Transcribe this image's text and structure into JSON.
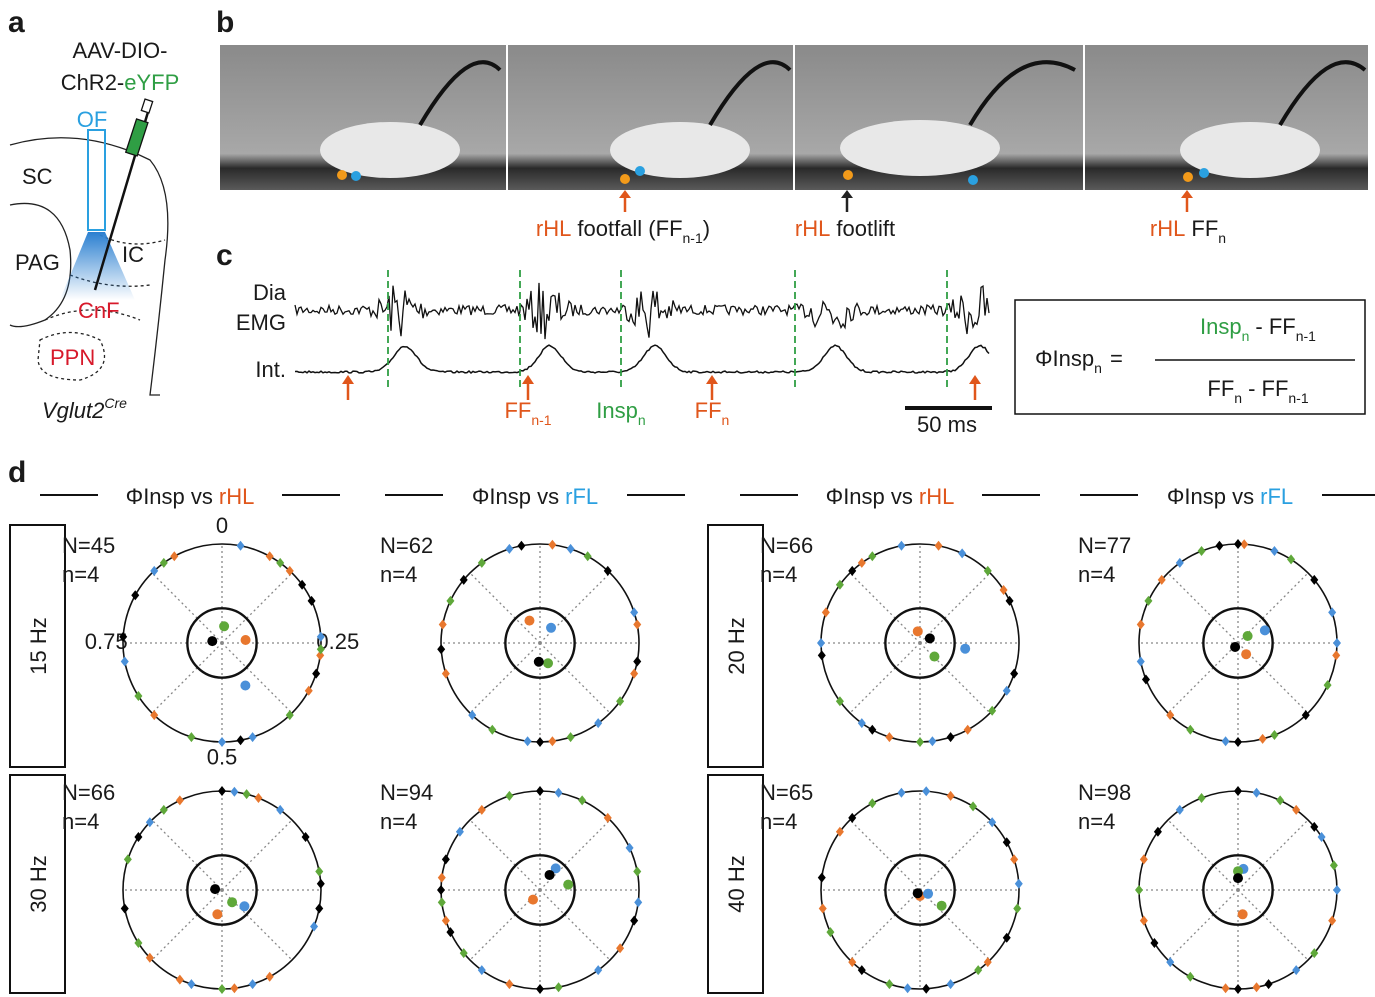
{
  "panel_labels": [
    "a",
    "b",
    "c",
    "d"
  ],
  "panel_a": {
    "virus_line1": "AAV-DIO-",
    "virus_line2": "ChR2-",
    "virus_reporter": "eYFP",
    "fiber": "OF",
    "regions": [
      "SC",
      "PAG",
      "IC",
      "CnF",
      "PPN"
    ],
    "genotype": "Vglut2",
    "genotype_sup": "Cre"
  },
  "panel_b": {
    "captions": [
      {
        "limb": "rHL",
        "event": "footfall (FF",
        "sub": "n-1",
        "close": ")"
      },
      {
        "limb": "rHL",
        "event": "footlift"
      },
      {
        "limb": "rHL",
        "event": "FF",
        "sub": "n"
      }
    ]
  },
  "panel_c": {
    "trace_labels": [
      "Dia",
      "EMG",
      "Int."
    ],
    "markers": [
      {
        "text": "FF",
        "sub": "n-1"
      },
      {
        "text": "Insp",
        "sub": "n"
      },
      {
        "text": "FF",
        "sub": "n"
      }
    ],
    "scale_bar": "50 ms"
  },
  "formula": {
    "lhs": "ΦInsp",
    "lhs_sub": "n",
    "equals": "=",
    "num": [
      "Insp",
      "n",
      "- FF",
      "n-1"
    ],
    "den": [
      "FF",
      "n",
      "- FF",
      "n-1"
    ]
  },
  "panel_d": {
    "headers": [
      {
        "text": "ΦInsp vs",
        "target": "rHL"
      },
      {
        "text": "ΦInsp vs",
        "target": "rFL"
      },
      {
        "text": "ΦInsp vs",
        "target": "rHL"
      },
      {
        "text": "ΦInsp vs",
        "target": "rFL"
      }
    ],
    "frequencies": [
      "15 Hz",
      "30 Hz",
      "20 Hz",
      "40 Hz"
    ],
    "polar_ticks": [
      0,
      0.25,
      0.5,
      0.75
    ],
    "rlim": [
      0,
      1
    ],
    "colors": [
      "#e8772e",
      "#4a90d9",
      "#5fa83a",
      "#000000"
    ],
    "plots": [
      {
        "n_label": "N=45",
        "animals_label": "n=4",
        "series": [
          {
            "phases": [
              0.08,
              0.12,
              0.27,
              0.33,
              0.62,
              0.92
            ],
            "mean": [
              0.23,
              0.24
            ]
          },
          {
            "phases": [
              0.03,
              0.24,
              0.45,
              0.5,
              0.72,
              0.88
            ],
            "mean": [
              0.42,
              0.49
            ]
          },
          {
            "phases": [
              0.1,
              0.26,
              0.38,
              0.55,
              0.66,
              0.9
            ],
            "mean": [
              0.02,
              0.17
            ]
          },
          {
            "phases": [
              0.15,
              0.18,
              0.3,
              0.47,
              0.76,
              0.83
            ],
            "mean": [
              0.78,
              0.1
            ]
          }
        ]
      },
      {
        "n_label": "N=62",
        "animals_label": "n=4",
        "series": [
          {
            "phases": [
              0.02,
              0.22,
              0.3,
              0.48,
              0.7,
              0.78
            ],
            "mean": [
              0.93,
              0.25
            ]
          },
          {
            "phases": [
              0.05,
              0.2,
              0.4,
              0.52,
              0.62,
              0.95
            ],
            "mean": [
              0.1,
              0.19
            ]
          },
          {
            "phases": [
              0.08,
              0.35,
              0.45,
              0.58,
              0.82,
              0.9
            ],
            "mean": [
              0.44,
              0.22
            ]
          },
          {
            "phases": [
              0.12,
              0.28,
              0.5,
              0.74,
              0.86,
              0.97
            ],
            "mean": [
              0.51,
              0.19
            ]
          }
        ]
      },
      {
        "n_label": "N=66",
        "animals_label": "n=4",
        "series": [
          {
            "phases": [
              0.03,
              0.16,
              0.42,
              0.55,
              0.8,
              0.9
            ],
            "mean": [
              0.97,
              0.12
            ]
          },
          {
            "phases": [
              0.07,
              0.33,
              0.48,
              0.6,
              0.75,
              0.97
            ],
            "mean": [
              0.27,
              0.46
            ]
          },
          {
            "phases": [
              0.12,
              0.37,
              0.5,
              0.65,
              0.85,
              0.92
            ],
            "mean": [
              0.37,
              0.2
            ]
          },
          {
            "phases": [
              0.18,
              0.3,
              0.45,
              0.58,
              0.73,
              0.88
            ],
            "mean": [
              0.18,
              0.11
            ]
          }
        ]
      },
      {
        "n_label": "N=77",
        "animals_label": "n=4",
        "series": [
          {
            "phases": [
              0.01,
              0.27,
              0.46,
              0.62,
              0.78,
              0.86
            ],
            "mean": [
              0.4,
              0.14
            ]
          },
          {
            "phases": [
              0.06,
              0.2,
              0.25,
              0.52,
              0.72,
              0.9
            ],
            "mean": [
              0.18,
              0.3
            ]
          },
          {
            "phases": [
              0.09,
              0.32,
              0.44,
              0.58,
              0.82,
              0.94
            ],
            "mean": [
              0.15,
              0.12
            ]
          },
          {
            "phases": [
              0.0,
              0.14,
              0.38,
              0.5,
              0.69,
              0.97
            ],
            "mean": [
              0.6,
              0.05
            ]
          }
        ]
      },
      {
        "n_label": "N=66",
        "animals_label": "n=4",
        "series": [
          {
            "phases": [
              0.06,
              0.42,
              0.48,
              0.57,
              0.63,
              0.93
            ],
            "mean": [
              0.53,
              0.25
            ]
          },
          {
            "phases": [
              0.02,
              0.1,
              0.31,
              0.45,
              0.55,
              0.87
            ],
            "mean": [
              0.35,
              0.28
            ]
          },
          {
            "phases": [
              0.04,
              0.22,
              0.5,
              0.66,
              0.8,
              0.9
            ],
            "mean": [
              0.39,
              0.16
            ]
          },
          {
            "phases": [
              0.0,
              0.16,
              0.24,
              0.28,
              0.72,
              0.84
            ],
            "mean": [
              0.77,
              0.07
            ]
          }
        ]
      },
      {
        "n_label": "N=94",
        "animals_label": "n=4",
        "series": [
          {
            "phases": [
              0.12,
              0.35,
              0.55,
              0.7,
              0.77,
              0.9
            ],
            "mean": [
              0.6,
              0.12
            ]
          },
          {
            "phases": [
              0.03,
              0.18,
              0.27,
              0.4,
              0.6,
              0.85
            ],
            "mean": [
              0.1,
              0.27
            ]
          },
          {
            "phases": [
              0.07,
              0.22,
              0.47,
              0.64,
              0.73,
              0.95
            ],
            "mean": [
              0.22,
              0.29
            ]
          },
          {
            "phases": [
              0.0,
              0.3,
              0.5,
              0.68,
              0.75,
              0.8
            ],
            "mean": [
              0.09,
              0.18
            ]
          }
        ]
      },
      {
        "n_label": "N=65",
        "animals_label": "n=4",
        "series": [
          {
            "phases": [
              0.05,
              0.2,
              0.38,
              0.62,
              0.72,
              0.85
            ],
            "mean": [
              0.5,
              0.06
            ]
          },
          {
            "phases": [
              0.01,
              0.13,
              0.24,
              0.45,
              0.52,
              0.97
            ],
            "mean": [
              0.32,
              0.09
            ]
          },
          {
            "phases": [
              0.09,
              0.28,
              0.4,
              0.55,
              0.68,
              0.92
            ],
            "mean": [
              0.35,
              0.27
            ]
          },
          {
            "phases": [
              0.17,
              0.33,
              0.49,
              0.6,
              0.77,
              0.88
            ],
            "mean": [
              0.6,
              0.04
            ]
          }
        ]
      },
      {
        "n_label": "N=98",
        "animals_label": "n=4",
        "series": [
          {
            "phases": [
              0.1,
              0.3,
              0.47,
              0.52,
              0.7,
              0.8
            ],
            "mean": [
              0.47,
              0.25
            ]
          },
          {
            "phases": [
              0.03,
              0.16,
              0.25,
              0.4,
              0.62,
              0.9
            ],
            "mean": [
              0.04,
              0.22
            ]
          },
          {
            "phases": [
              0.07,
              0.21,
              0.36,
              0.58,
              0.75,
              0.94
            ],
            "mean": [
              0.0,
              0.19
            ]
          },
          {
            "phases": [
              0.0,
              0.14,
              0.45,
              0.5,
              0.66,
              0.85
            ],
            "mean": [
              0.0,
              0.12
            ]
          }
        ]
      }
    ]
  }
}
